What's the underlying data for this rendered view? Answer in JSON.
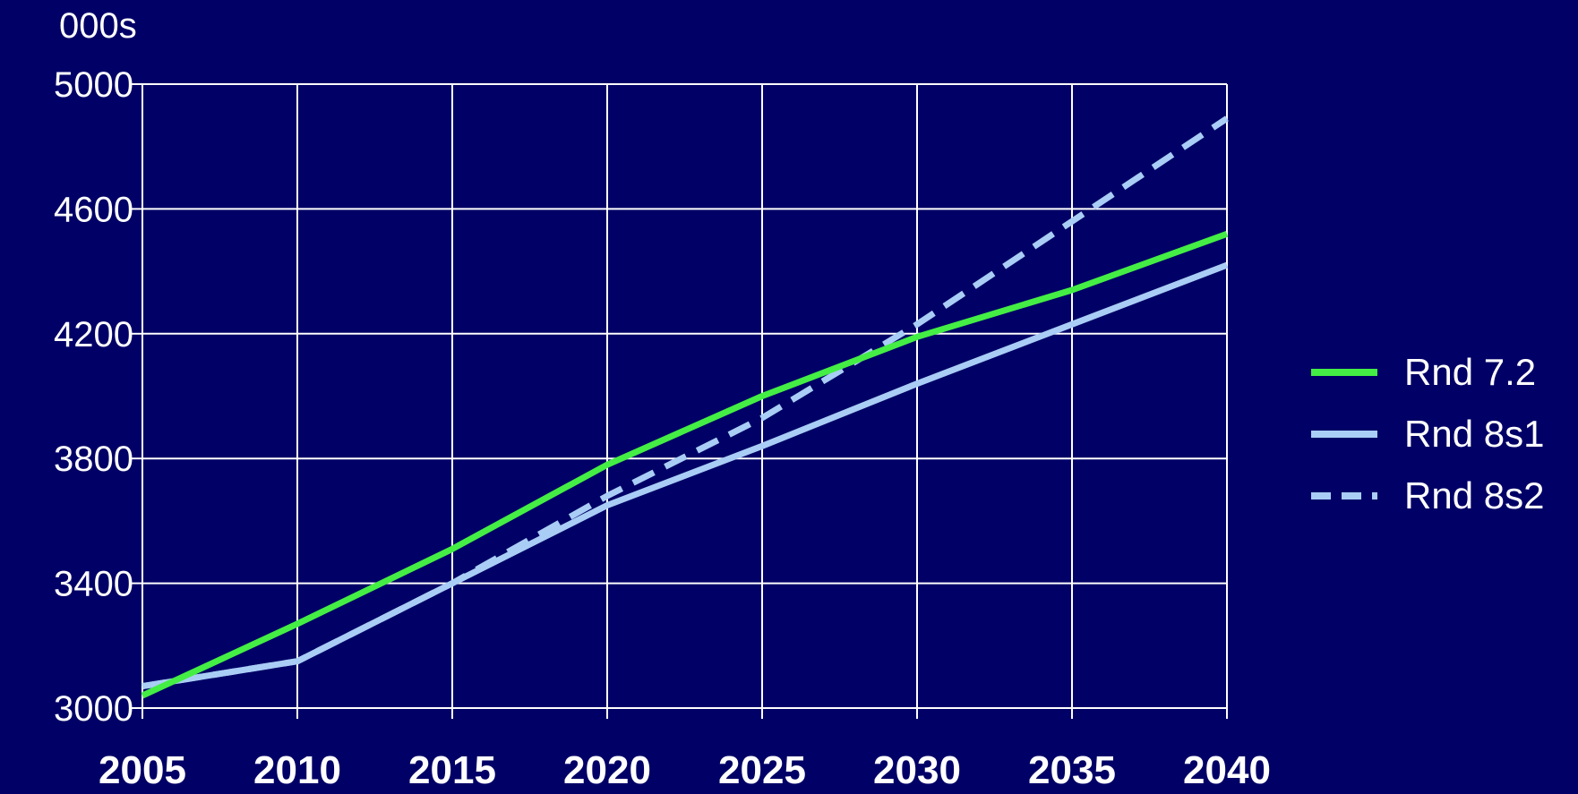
{
  "chart_data": {
    "type": "line",
    "title": "",
    "unit_label": "000s",
    "xlabel": "",
    "ylabel": "",
    "x": [
      2005,
      2010,
      2015,
      2020,
      2025,
      2030,
      2035,
      2040
    ],
    "xlim": [
      2005,
      2040
    ],
    "ylim": [
      3000,
      5000
    ],
    "yticks": [
      3000,
      3400,
      3800,
      4200,
      4600,
      5000
    ],
    "xticks": [
      2005,
      2010,
      2015,
      2020,
      2025,
      2030,
      2035,
      2040
    ],
    "grid": true,
    "legend_position": "right",
    "background_color": "#000066",
    "grid_color": "#ffffff",
    "series": [
      {
        "name": "Rnd 7.2",
        "color": "#44ee44",
        "dash": "solid",
        "values": [
          3040,
          3270,
          3510,
          3780,
          4000,
          4190,
          4340,
          4520
        ]
      },
      {
        "name": "Rnd 8s1",
        "color": "#a9cdf5",
        "dash": "solid",
        "values": [
          3070,
          3150,
          3400,
          3650,
          3840,
          4040,
          4230,
          4420
        ]
      },
      {
        "name": "Rnd 8s2",
        "color": "#a9cdf5",
        "dash": "dashed",
        "values": [
          3070,
          3150,
          3400,
          3680,
          3930,
          4230,
          4560,
          4890
        ]
      }
    ]
  }
}
